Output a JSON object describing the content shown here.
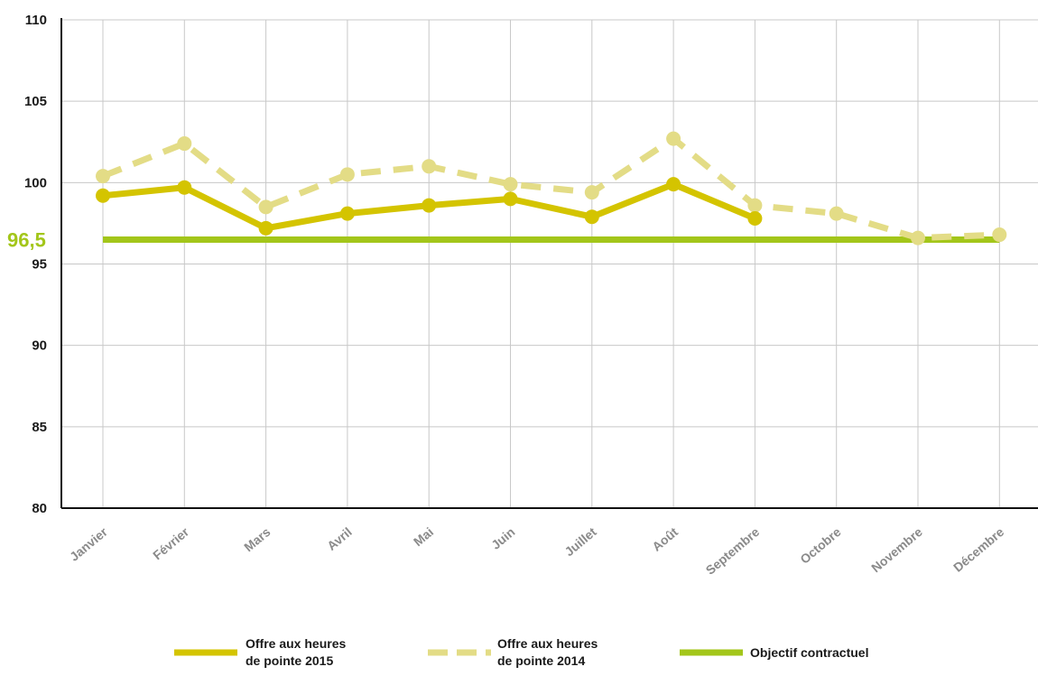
{
  "chart_data": {
    "type": "line",
    "title": "",
    "xlabel": "",
    "ylabel": "",
    "ylim": [
      80,
      110
    ],
    "yticks": [
      80,
      85,
      90,
      95,
      100,
      105,
      110
    ],
    "ytick_labels": [
      "80",
      "85",
      "90",
      "95",
      "100",
      "105",
      "110"
    ],
    "grid": "vertical",
    "legend_position": "bottom",
    "categories": [
      "Janvier",
      "Février",
      "Mars",
      "Avril",
      "Mai",
      "Juin",
      "Juillet",
      "Août",
      "Septembre",
      "Octobre",
      "Novembre",
      "Décembre"
    ],
    "series": [
      {
        "key": "s2015",
        "legend": [
          "Offre aux heures",
          "de pointe 2015"
        ],
        "style": "solid",
        "color": "#d4c400",
        "values": [
          99.2,
          99.7,
          97.2,
          98.1,
          98.6,
          99.0,
          97.9,
          99.9,
          97.8,
          null,
          null,
          null
        ]
      },
      {
        "key": "s2014",
        "legend": [
          "Offre aux heures",
          "de pointe 2014"
        ],
        "style": "dashed",
        "color": "#e3dc86",
        "values": [
          100.4,
          102.4,
          98.5,
          100.5,
          101.0,
          99.9,
          99.4,
          102.7,
          98.6,
          98.1,
          96.6,
          96.8
        ]
      },
      {
        "key": "target",
        "legend": [
          "Objectif contractuel"
        ],
        "style": "solid",
        "color": "#a3c61a",
        "values": [
          96.5,
          96.5,
          96.5,
          96.5,
          96.5,
          96.5,
          96.5,
          96.5,
          96.5,
          96.5,
          96.5,
          96.5
        ]
      }
    ],
    "annotations": [
      {
        "text": "96,5",
        "y": 96.5,
        "color": "#a3c61a"
      }
    ]
  }
}
